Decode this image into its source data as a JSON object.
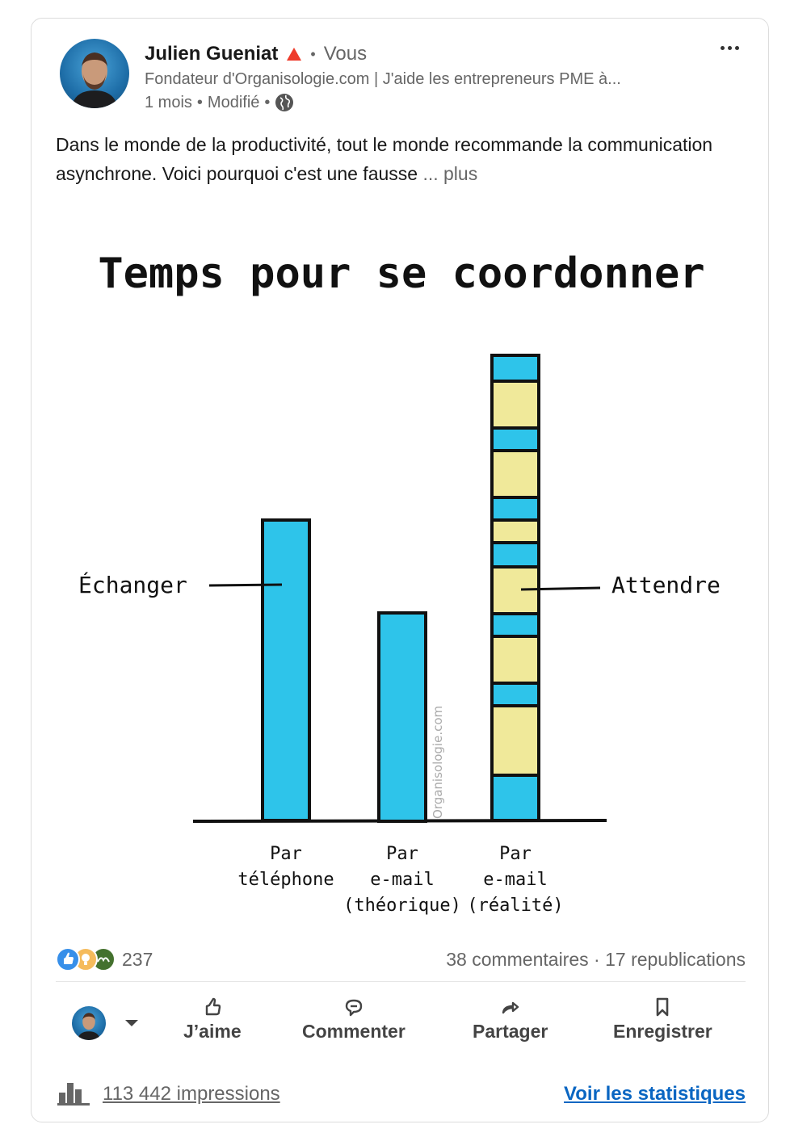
{
  "post": {
    "author": {
      "name": "Julien Gueniat",
      "relation": "Vous",
      "headline": "Fondateur d'Organisologie.com | J'aide les entrepreneurs PME à...",
      "time": "1 mois",
      "edited": "Modifié"
    },
    "text": "Dans le monde de la productivité, tout le monde recommande la communication asynchrone. Voici pourquoi c'est une fausse",
    "more_label": "... plus",
    "image": {
      "title": "Temps pour se coordonner",
      "label_left": "Échanger",
      "label_right": "Attendre",
      "watermark": "Organisologie.com",
      "categories": [
        "Par\ntéléphone",
        "Par\ne-mail\n(théorique)",
        "Par\ne-mail\n(réalité)"
      ],
      "colors": {
        "exchange": "#2ec4ea",
        "wait": "#f0e99a",
        "stroke": "#111111"
      }
    },
    "reactions_count": "237",
    "comments": "38 commentaires",
    "reposts": "17 republications",
    "actions": {
      "like": "J’aime",
      "comment": "Commenter",
      "share": "Partager",
      "save": "Enregistrer"
    },
    "impressions": "113 442 impressions",
    "see_stats": "Voir les statistiques"
  },
  "icons": {
    "badge": "triangle-badge-icon",
    "globe": "globe-icon",
    "more": "more-dots-icon",
    "like": "thumb-up-icon",
    "comment": "comment-icon",
    "share": "share-arrow-icon",
    "save": "bookmark-icon",
    "stats": "bar-stats-icon"
  }
}
